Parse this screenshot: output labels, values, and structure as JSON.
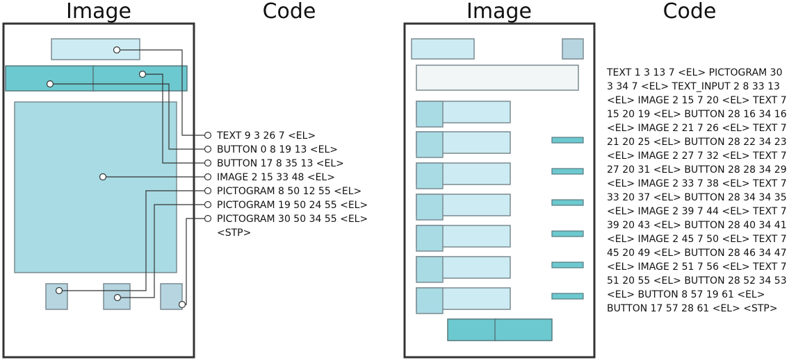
{
  "headings": {
    "left_image": "Image",
    "left_code": "Code",
    "right_image": "Image",
    "right_code": "Code"
  },
  "colors": {
    "frame": "#333333",
    "light_fill": "#cdebf2",
    "mid_fill": "#a8dbe4",
    "teal_fill": "#6cc9cf",
    "pictogram_fill": "#b6d5e0",
    "input_fill": "#f3f6f6",
    "block_stroke": "#7a8a91",
    "connector": "#333333"
  },
  "left_code_lines": [
    "TEXT 9 3 26 7 <EL>",
    "BUTTON 0 8 19 13 <EL>",
    "BUTTON 17 8 35 13 <EL>",
    "IMAGE 2 15 33 48 <EL>",
    "PICTOGRAM 8 50 12 55 <EL>",
    "PICTOGRAM 19 50 24 55 <EL>",
    "PICTOGRAM 30 50 34 55 <EL>",
    "<STP>"
  ],
  "right_code_lines": [
    "TEXT 1 3 13 7 <EL> PICTOGRAM 30",
    "3 34 7 <EL> TEXT_INPUT 2 8 33 13",
    "<EL> IMAGE 2 15 7 20 <EL> TEXT 7",
    "15 20 19 <EL> BUTTON 28 16 34 16",
    "<EL> IMAGE 2 21 7 26 <EL> TEXT 7",
    "21 20 25 <EL> BUTTON 28 22 34 23",
    "<EL> IMAGE 2 27 7 32 <EL> TEXT 7",
    "27 20 31 <EL> BUTTON 28 28 34 29",
    "<EL> IMAGE 2 33 7 38 <EL> TEXT 7",
    "33 20 37 <EL> BUTTON 28 34 34 35",
    "<EL> IMAGE 2 39 7 44 <EL> TEXT 7",
    "39 20 43 <EL> BUTTON 28 40 34 41",
    "<EL> IMAGE 2 45 7 50 <EL> TEXT 7",
    "45 20 49 <EL> BUTTON 28 46 34 47",
    "<EL> IMAGE 2 51 7 56 <EL> TEXT 7",
    "51 20 55 <EL> BUTTON 28 52 34 53",
    "<EL> BUTTON 8 57 19 61 <EL>",
    "BUTTON 17 57 28 61 <EL> <STP>"
  ]
}
